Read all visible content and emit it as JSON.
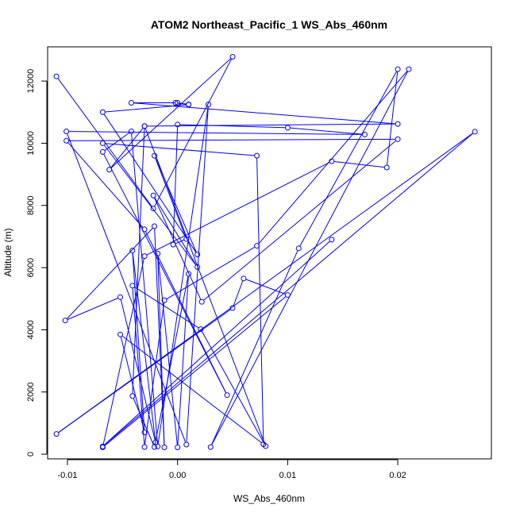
{
  "chart_data": {
    "type": "line",
    "title": "ATOM2 Northeast_Pacific_1 WS_Abs_460nm",
    "xlabel": "WS_Abs_460nm",
    "ylabel": "Altitude (m)",
    "xlim": [
      -0.0118,
      0.0285
    ],
    "ylim": [
      -150,
      13100
    ],
    "x_ticks": [
      -0.01,
      0.0,
      0.01,
      0.02
    ],
    "x_tick_labels": [
      "-0.01",
      "0.00",
      "0.01",
      "0.02"
    ],
    "y_ticks": [
      0,
      2000,
      4000,
      6000,
      8000,
      10000,
      12000
    ],
    "y_tick_labels": [
      "0",
      "2000",
      "4000",
      "6000",
      "8000",
      "10000",
      "12000"
    ],
    "grid": false,
    "legend": "none",
    "series": [
      {
        "color": "#0000ff",
        "marker": "open-circle",
        "points": [
          {
            "x": -0.011,
            "y": 12150
          },
          {
            "x": -0.0022,
            "y": 7900
          },
          {
            "x": 0.005,
            "y": 12780
          },
          {
            "x": -0.0062,
            "y": 9150
          },
          {
            "x": -0.003,
            "y": 10550
          },
          {
            "x": 0.02,
            "y": 10620
          },
          {
            "x": -0.0042,
            "y": 11300
          },
          {
            "x": 0.0,
            "y": 11300
          },
          {
            "x": 0.001,
            "y": 11250
          },
          {
            "x": -0.0002,
            "y": 11300
          },
          {
            "x": 0.001,
            "y": 11240
          },
          {
            "x": -0.0068,
            "y": 11000
          },
          {
            "x": 0.0018,
            "y": 6420
          },
          {
            "x": -0.0021,
            "y": 9600
          },
          {
            "x": 0.0008,
            "y": 6920
          },
          {
            "x": -0.0004,
            "y": 6740
          },
          {
            "x": 0.0,
            "y": 10600
          },
          {
            "x": 0.01,
            "y": 10500
          },
          {
            "x": 0.017,
            "y": 10280
          },
          {
            "x": -0.0101,
            "y": 10380
          },
          {
            "x": 0.0008,
            "y": 310
          },
          {
            "x": 0.0028,
            "y": 11250
          },
          {
            "x": -0.0018,
            "y": 250
          },
          {
            "x": -0.0042,
            "y": 10380
          },
          {
            "x": -0.0068,
            "y": 9720
          },
          {
            "x": 0.0045,
            "y": 1900
          },
          {
            "x": -0.003,
            "y": 7230
          },
          {
            "x": -0.0101,
            "y": 10080
          },
          {
            "x": 0.02,
            "y": 10130
          },
          {
            "x": 0.0022,
            "y": 4900
          },
          {
            "x": -0.0022,
            "y": 8320
          },
          {
            "x": 0.0018,
            "y": 6020
          },
          {
            "x": -0.0068,
            "y": 10000
          },
          {
            "x": 0.0072,
            "y": 9600
          },
          {
            "x": 0.0078,
            "y": 320
          },
          {
            "x": -0.0052,
            "y": 3850
          },
          {
            "x": -0.003,
            "y": 700
          },
          {
            "x": -0.0041,
            "y": 6550
          },
          {
            "x": -0.002,
            "y": 380
          },
          {
            "x": -0.0052,
            "y": 5050
          },
          {
            "x": -0.0102,
            "y": 4300
          },
          {
            "x": -0.0021,
            "y": 7330
          },
          {
            "x": -0.0012,
            "y": 220
          },
          {
            "x": -0.0018,
            "y": 6450
          },
          {
            "x": 0.0,
            "y": 220
          },
          {
            "x": 0.001,
            "y": 5800
          },
          {
            "x": -0.0021,
            "y": 230
          },
          {
            "x": -0.0041,
            "y": 1870
          },
          {
            "x": -0.003,
            "y": 10550
          },
          {
            "x": 0.008,
            "y": 260
          },
          {
            "x": 0.0021,
            "y": 4020
          },
          {
            "x": -0.0041,
            "y": 5420
          },
          {
            "x": -0.003,
            "y": 230
          },
          {
            "x": -0.0012,
            "y": 4950
          },
          {
            "x": 0.0072,
            "y": 6700
          },
          {
            "x": 0.021,
            "y": 12380
          },
          {
            "x": 0.003,
            "y": 230
          },
          {
            "x": 0.011,
            "y": 6620
          },
          {
            "x": 0.02,
            "y": 12380
          },
          {
            "x": 0.019,
            "y": 9220
          },
          {
            "x": 0.014,
            "y": 9420
          },
          {
            "x": -0.003,
            "y": 6370
          },
          {
            "x": -0.0068,
            "y": 220
          },
          {
            "x": 0.01,
            "y": 5120
          },
          {
            "x": 0.006,
            "y": 5650
          },
          {
            "x": 0.005,
            "y": 4700
          },
          {
            "x": -0.011,
            "y": 650
          },
          {
            "x": 0.027,
            "y": 10370
          },
          {
            "x": -0.0068,
            "y": 250
          },
          {
            "x": 0.014,
            "y": 6900
          }
        ]
      }
    ]
  }
}
